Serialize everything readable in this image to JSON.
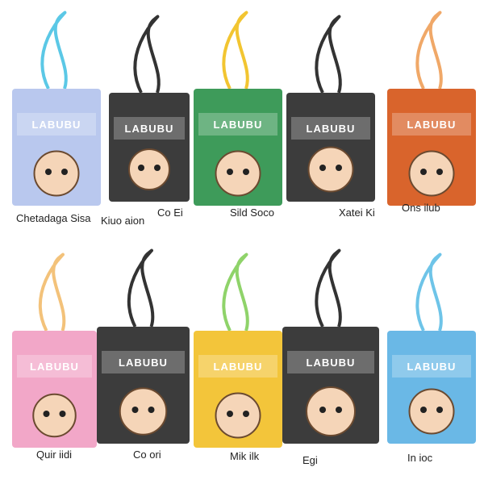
{
  "brand": "LABUBU",
  "items": [
    {
      "caption": "Chetadaga Sisa"
    },
    {
      "caption": "Kiuo aion"
    },
    {
      "caption": "Co Ei"
    },
    {
      "caption": "Sild Soco"
    },
    {
      "caption": "Xatei Ki"
    },
    {
      "caption": "Ons ilub"
    },
    {
      "caption": "Quir iidi"
    },
    {
      "caption": "Co ori"
    },
    {
      "caption": "Mik ilk"
    },
    {
      "caption": "Egi"
    },
    {
      "caption": "In ioc"
    }
  ]
}
